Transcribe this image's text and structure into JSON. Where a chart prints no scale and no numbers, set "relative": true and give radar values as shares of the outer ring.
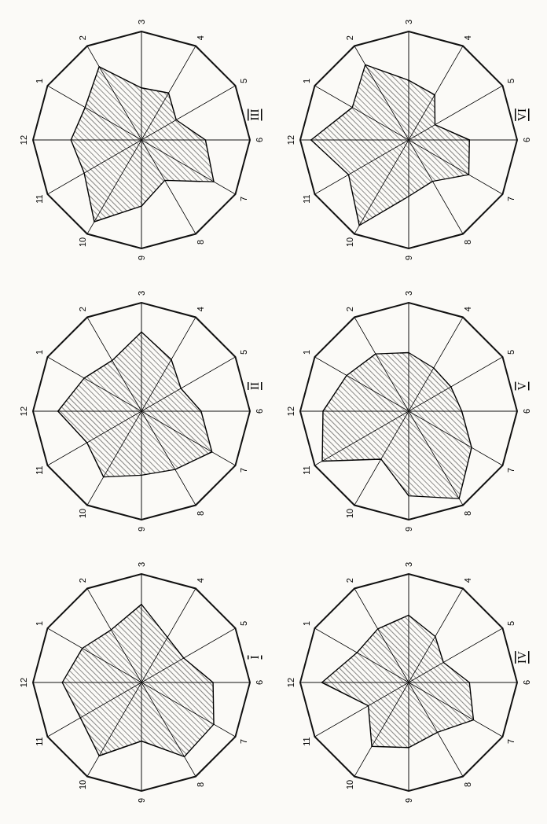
{
  "chart_data": [
    {
      "type": "radar",
      "title": "I",
      "relative": true,
      "grid": true,
      "categories": [
        "12",
        "1",
        "2",
        "3",
        "4",
        "5",
        "6",
        "7",
        "8",
        "9",
        "10",
        "11"
      ],
      "series": [
        {
          "color": "#000000",
          "values": [
            0.73,
            0.63,
            0.56,
            0.72,
            0.48,
            0.45,
            0.66,
            0.77,
            0.79,
            0.54,
            0.78,
            0.65
          ]
        }
      ]
    },
    {
      "type": "radar",
      "title": "II",
      "relative": true,
      "grid": true,
      "categories": [
        "12",
        "1",
        "2",
        "3",
        "4",
        "5",
        "6",
        "7",
        "8",
        "9",
        "10",
        "11"
      ],
      "series": [
        {
          "color": "#000000",
          "values": [
            0.77,
            0.61,
            0.54,
            0.73,
            0.55,
            0.42,
            0.55,
            0.75,
            0.62,
            0.59,
            0.7,
            0.58
          ]
        }
      ]
    },
    {
      "type": "radar",
      "title": "III",
      "relative": true,
      "grid": true,
      "categories": [
        "12",
        "1",
        "2",
        "3",
        "4",
        "5",
        "6",
        "7",
        "8",
        "9",
        "10",
        "11"
      ],
      "series": [
        {
          "color": "#000000",
          "values": [
            0.65,
            0.6,
            0.78,
            0.48,
            0.5,
            0.37,
            0.59,
            0.77,
            0.43,
            0.61,
            0.87,
            0.61
          ]
        }
      ]
    },
    {
      "type": "radar",
      "title": "IV",
      "relative": true,
      "grid": true,
      "categories": [
        "12",
        "1",
        "2",
        "3",
        "4",
        "5",
        "6",
        "7",
        "8",
        "9",
        "10",
        "11"
      ],
      "series": [
        {
          "color": "#000000",
          "values": [
            0.8,
            0.55,
            0.57,
            0.62,
            0.49,
            0.37,
            0.56,
            0.69,
            0.53,
            0.6,
            0.68,
            0.43
          ]
        }
      ]
    },
    {
      "type": "radar",
      "title": "V",
      "relative": true,
      "grid": true,
      "categories": [
        "12",
        "1",
        "2",
        "3",
        "4",
        "5",
        "6",
        "7",
        "8",
        "9",
        "10",
        "11"
      ],
      "series": [
        {
          "color": "#000000",
          "values": [
            0.79,
            0.66,
            0.61,
            0.54,
            0.46,
            0.45,
            0.49,
            0.67,
            0.93,
            0.78,
            0.51,
            0.92
          ]
        }
      ]
    },
    {
      "type": "radar",
      "title": "VI",
      "relative": true,
      "grid": true,
      "categories": [
        "12",
        "1",
        "2",
        "3",
        "4",
        "5",
        "6",
        "7",
        "8",
        "9",
        "10",
        "11"
      ],
      "series": [
        {
          "color": "#000000",
          "values": [
            0.9,
            0.6,
            0.8,
            0.55,
            0.48,
            0.28,
            0.56,
            0.64,
            0.44,
            0.52,
            0.91,
            0.64
          ]
        }
      ]
    }
  ]
}
